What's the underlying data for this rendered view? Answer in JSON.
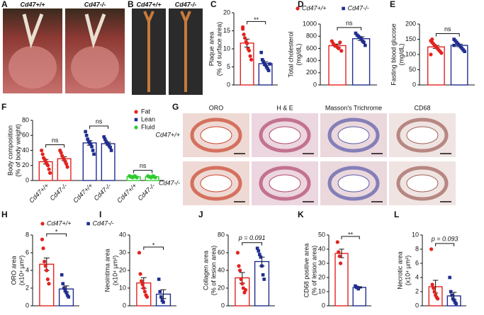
{
  "figures": [
    {
      "panel": "A",
      "captions": [
        "Cd47+/+",
        "Cd47-/-"
      ]
    },
    {
      "panel": "B",
      "captions": [
        "Cd47+/+",
        "Cd47-/-"
      ]
    },
    {
      "panel": "G",
      "columns": [
        "ORO",
        "H & E",
        "Masson's Trichrome",
        "CD68"
      ],
      "rows": [
        "Cd47+/+",
        "Cd47-/-"
      ]
    }
  ],
  "chart_data": [
    {
      "type": "dotbar",
      "panel": "C",
      "ylabel": [
        "Plaque area",
        "(% of surface area)"
      ],
      "ylim": [
        0,
        20
      ],
      "yticks": [
        0,
        5,
        10,
        15,
        20
      ],
      "colors": [
        "#e3231f",
        "#1f2d8f"
      ],
      "values": [
        11.6,
        5.9
      ],
      "errors": [
        1.1,
        0.5
      ],
      "points": [
        [
          15.5,
          14,
          13,
          12,
          11.5,
          10,
          9.5,
          8,
          7,
          16
        ],
        [
          9,
          7,
          6.5,
          6,
          5.5,
          5,
          4.5,
          4,
          5.8
        ]
      ],
      "annotation": "**"
    },
    {
      "type": "dotbar",
      "panel": "D",
      "ylabel": [
        "Total cholesterol",
        "(mg/dL)"
      ],
      "ylim": [
        0,
        1000
      ],
      "yticks": [
        0,
        200,
        400,
        600,
        800,
        1000
      ],
      "colors": [
        "#e3231f",
        "#1f2d8f"
      ],
      "values": [
        646,
        760
      ],
      "errors": [
        25,
        30
      ],
      "points": [
        [
          720,
          680,
          650,
          640,
          620,
          600,
          700,
          560
        ],
        [
          850,
          820,
          800,
          780,
          760,
          720,
          700,
          650
        ]
      ],
      "annotation": "ns",
      "legend": [
        "Cd47+/+",
        "Cd47-/-"
      ]
    },
    {
      "type": "dotbar",
      "panel": "E",
      "ylabel": [
        "Fasting blood glucose",
        "(mg/dL)"
      ],
      "ylim": [
        0,
        200
      ],
      "yticks": [
        0,
        50,
        100,
        150,
        200
      ],
      "colors": [
        "#e3231f",
        "#1f2d8f"
      ],
      "values": [
        125,
        130
      ],
      "errors": [
        5,
        4
      ],
      "points": [
        [
          145,
          140,
          135,
          130,
          125,
          120,
          115,
          110,
          105,
          100,
          150
        ],
        [
          150,
          145,
          140,
          135,
          130,
          125,
          120,
          115,
          110,
          130
        ]
      ],
      "annotation": "ns"
    },
    {
      "type": "groupdotbar",
      "panel": "F",
      "ylabel": [
        "Body composition",
        "(% of body weight)"
      ],
      "ylim": [
        0,
        80
      ],
      "yticks": [
        0,
        20,
        40,
        60,
        80
      ],
      "categories": [
        "Cd47+/+",
        "Cd47-/-"
      ],
      "annotations": [
        "ns",
        "ns",
        "ns"
      ],
      "series": [
        {
          "name": "Fat",
          "color": "#e3231f",
          "values": [
            25,
            29
          ],
          "errors": [
            3,
            2.5
          ],
          "points": [
            [
              40,
              35,
              30,
              28,
              25,
              22,
              20,
              15,
              10
            ],
            [
              40,
              37,
              33,
              30,
              28,
              25,
              22,
              18
            ]
          ]
        },
        {
          "name": "Lean",
          "color": "#1f2d8f",
          "values": [
            50,
            49
          ],
          "errors": [
            3,
            2
          ],
          "points": [
            [
              65,
              60,
              55,
              52,
              50,
              48,
              45,
              40,
              35
            ],
            [
              58,
              55,
              52,
              50,
              48,
              46,
              44,
              40
            ]
          ]
        },
        {
          "name": "Fluid",
          "color": "#2ecc2e",
          "values": [
            5,
            5
          ],
          "errors": [
            0.3,
            0.3
          ],
          "points": [
            [
              6,
              5,
              5,
              4,
              5,
              6,
              5,
              4
            ],
            [
              6,
              5,
              5,
              4,
              5,
              6,
              5,
              4
            ]
          ]
        }
      ]
    },
    {
      "type": "dotbar",
      "panel": "H",
      "ylabel": [
        "ORO area",
        "(x10⁴ µm²)"
      ],
      "ylim": [
        0,
        8
      ],
      "yticks": [
        0,
        2,
        4,
        6,
        8
      ],
      "colors": [
        "#e3231f",
        "#1f2d8f"
      ],
      "values": [
        4.7,
        1.9
      ],
      "errors": [
        0.7,
        0.35
      ],
      "points": [
        [
          7.5,
          6.5,
          5,
          4.5,
          4,
          3,
          2.5
        ],
        [
          3.5,
          2.5,
          2,
          1.8,
          1.5,
          1.2,
          1
        ]
      ],
      "annotation": "*",
      "legend": [
        "Cd47+/+",
        "Cd47-/-"
      ]
    },
    {
      "type": "dotbar",
      "panel": "I",
      "ylabel": [
        "Neointima area",
        "(x10⁴ µm²)"
      ],
      "ylim": [
        0,
        40
      ],
      "yticks": [
        0,
        10,
        20,
        30,
        40
      ],
      "colors": [
        "#e3231f",
        "#1f2d8f"
      ],
      "values": [
        12.9,
        6.6
      ],
      "errors": [
        3,
        2.5
      ],
      "points": [
        [
          30,
          18,
          14,
          12,
          10,
          8,
          6,
          5
        ],
        [
          15,
          8,
          5,
          3,
          2
        ]
      ],
      "annotation": "*"
    },
    {
      "type": "dotbar",
      "panel": "J",
      "ylabel": [
        "Collagen area",
        "(% of lesion area)"
      ],
      "ylim": [
        0,
        80
      ],
      "yticks": [
        0,
        20,
        40,
        60,
        80
      ],
      "colors": [
        "#e3231f",
        "#1f2d8f"
      ],
      "values": [
        31.6,
        50
      ],
      "errors": [
        6,
        5
      ],
      "points": [
        [
          60,
          45,
          40,
          30,
          25,
          20,
          15,
          18
        ],
        [
          65,
          62,
          58,
          55,
          45,
          35,
          30
        ]
      ],
      "annotation": "p = 0.091"
    },
    {
      "type": "dotbar",
      "panel": "K",
      "ylabel": [
        "CD68 positive area",
        "(% of lesion area)"
      ],
      "ylim": [
        0,
        50
      ],
      "yticks": [
        0,
        10,
        20,
        30,
        40,
        50
      ],
      "colors": [
        "#e3231f",
        "#1f2d8f"
      ],
      "values": [
        37,
        13
      ],
      "errors": [
        3,
        0.5
      ],
      "points": [
        [
          45,
          38,
          35,
          30
        ],
        [
          14,
          13,
          13,
          12
        ]
      ],
      "annotation": "**"
    },
    {
      "type": "dotbar",
      "panel": "L",
      "ylabel": [
        "Necrotic area",
        "(x10⁴ µm²)"
      ],
      "ylim": [
        0,
        10
      ],
      "yticks": [
        0,
        2,
        4,
        6,
        8,
        10
      ],
      "colors": [
        "#e3231f",
        "#1f2d8f"
      ],
      "values": [
        2.7,
        1.4
      ],
      "errors": [
        0.9,
        0.5
      ],
      "points": [
        [
          8,
          3,
          2.5,
          2,
          1.5,
          1.2,
          1
        ],
        [
          4,
          2,
          1.5,
          1,
          0.8,
          0.5,
          0.3
        ]
      ],
      "annotation": "p = 0.093"
    }
  ]
}
